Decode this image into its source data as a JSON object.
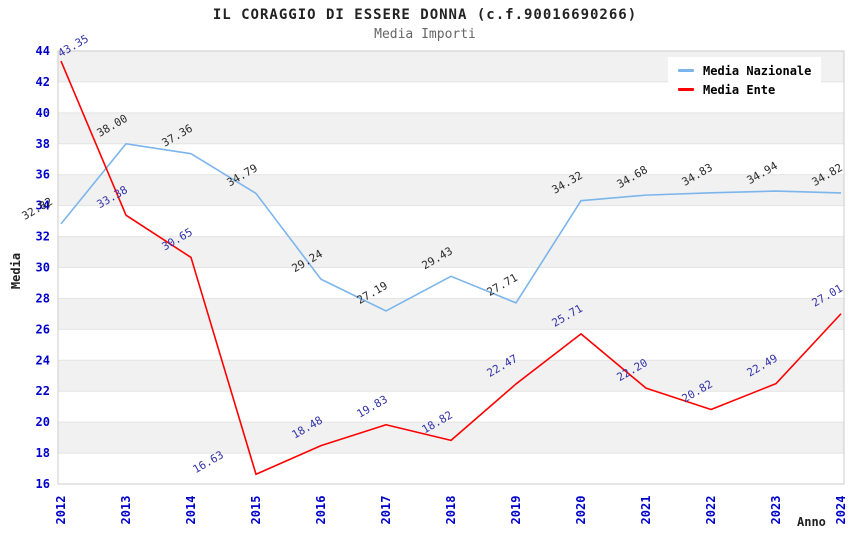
{
  "chart_data": {
    "type": "line",
    "title": "IL CORAGGIO DI ESSERE DONNA (c.f.90016690266)",
    "subtitle": "Media Importi",
    "xlabel": "Anno",
    "ylabel": "Media",
    "ylim": [
      16,
      44
    ],
    "y_tick_step": 2,
    "grid": "horizontal-alternating-bands",
    "legend_position": "top-right",
    "categories": [
      "2012",
      "2013",
      "2014",
      "2015",
      "2016",
      "2017",
      "2018",
      "2019",
      "2020",
      "2021",
      "2022",
      "2023",
      "2024"
    ],
    "series": [
      {
        "name": "Media Nazionale",
        "color": "#7cb5ec",
        "label_color": "#2b2b2b",
        "values": [
          32.82,
          38.0,
          37.36,
          34.79,
          29.24,
          27.19,
          29.43,
          27.71,
          34.32,
          34.68,
          34.83,
          34.94,
          34.82
        ]
      },
      {
        "name": "Media Ente",
        "color": "#ff0000",
        "label_color": "#3333aa",
        "values": [
          43.35,
          33.38,
          30.65,
          16.63,
          18.48,
          19.83,
          18.82,
          22.47,
          25.71,
          22.2,
          20.82,
          22.49,
          27.01
        ]
      }
    ],
    "colors": {
      "band_gray": "#f1f1f1",
      "gridline": "#e4e4e4",
      "plot_border": "#cccccc",
      "tick_label": "#0000cc"
    }
  }
}
